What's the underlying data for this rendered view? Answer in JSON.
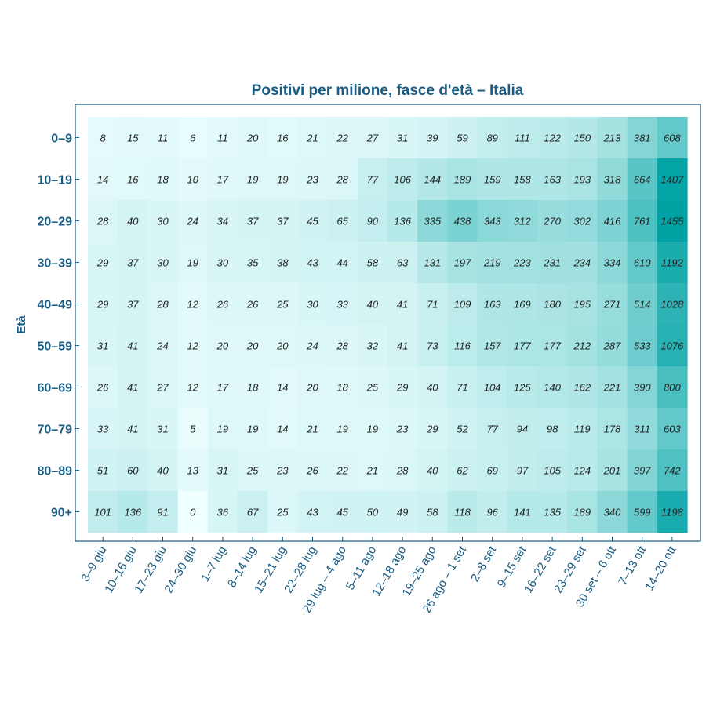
{
  "chart_data": {
    "type": "heatmap",
    "title": "Positivi per milione, fasce d'età – Italia",
    "ylabel": "Età",
    "xlabel": "",
    "rows": [
      "0–9",
      "10–19",
      "20–29",
      "30–39",
      "40–49",
      "50–59",
      "60–69",
      "70–79",
      "80–89",
      "90+"
    ],
    "columns": [
      "3–9 giu",
      "10–16 giu",
      "17–23 giu",
      "24–30 giu",
      "1–7 lug",
      "8–14 lug",
      "15–21 lug",
      "22–28 lug",
      "29 lug – 4 ago",
      "5–11 ago",
      "12–18 ago",
      "19–25 ago",
      "26 ago – 1 set",
      "2–8 set",
      "9–15 set",
      "16–22 set",
      "23–29 set",
      "30 set – 6 ott",
      "7–13 ott",
      "14–20 ott"
    ],
    "values": [
      [
        8,
        15,
        11,
        6,
        11,
        20,
        16,
        21,
        22,
        27,
        31,
        39,
        59,
        89,
        111,
        122,
        150,
        213,
        381,
        608
      ],
      [
        14,
        16,
        18,
        10,
        17,
        19,
        19,
        23,
        28,
        77,
        106,
        144,
        189,
        159,
        158,
        163,
        193,
        318,
        664,
        1407
      ],
      [
        28,
        40,
        30,
        24,
        34,
        37,
        37,
        45,
        65,
        90,
        136,
        335,
        438,
        343,
        312,
        270,
        302,
        416,
        761,
        1455
      ],
      [
        29,
        37,
        30,
        19,
        30,
        35,
        38,
        43,
        44,
        58,
        63,
        131,
        197,
        219,
        223,
        231,
        234,
        334,
        610,
        1192
      ],
      [
        29,
        37,
        28,
        12,
        26,
        26,
        25,
        30,
        33,
        40,
        41,
        71,
        109,
        163,
        169,
        180,
        195,
        271,
        514,
        1028
      ],
      [
        31,
        41,
        24,
        12,
        20,
        20,
        20,
        24,
        28,
        32,
        41,
        73,
        116,
        157,
        177,
        177,
        212,
        287,
        533,
        1076
      ],
      [
        26,
        41,
        27,
        12,
        17,
        18,
        14,
        20,
        18,
        25,
        29,
        40,
        71,
        104,
        125,
        140,
        162,
        221,
        390,
        800
      ],
      [
        33,
        41,
        31,
        5,
        19,
        19,
        14,
        21,
        19,
        19,
        23,
        29,
        52,
        77,
        94,
        98,
        119,
        178,
        311,
        603
      ],
      [
        51,
        60,
        40,
        13,
        31,
        25,
        23,
        26,
        22,
        21,
        28,
        40,
        62,
        69,
        97,
        105,
        124,
        201,
        397,
        742
      ],
      [
        101,
        136,
        91,
        0,
        36,
        67,
        25,
        43,
        45,
        50,
        49,
        58,
        118,
        96,
        141,
        135,
        189,
        340,
        599,
        1198
      ]
    ],
    "colors": {
      "low": "#f0ffff",
      "high": "#00a2a4",
      "label": "#1a5c82",
      "frame": "#1a5c82",
      "cell_text": "#222222"
    }
  }
}
